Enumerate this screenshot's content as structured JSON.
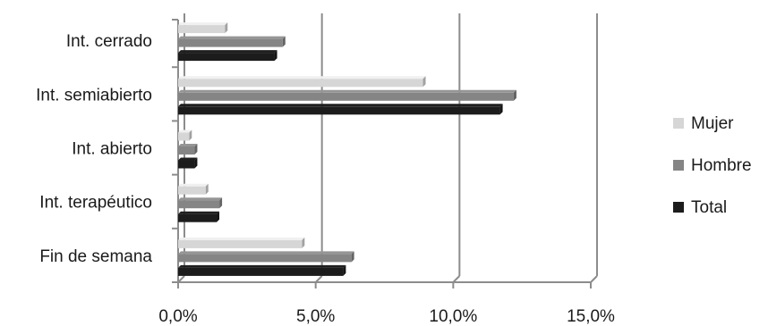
{
  "chart_data": {
    "type": "bar",
    "orientation": "horizontal",
    "style": "3d-clustered",
    "categories": [
      "Int. cerrado",
      "Int. semiabierto",
      "Int. abierto",
      "Int. terapéutico",
      "Fin de semana"
    ],
    "series": [
      {
        "name": "Mujer",
        "color": "#d6d6d6",
        "values": [
          1.7,
          8.9,
          0.4,
          1.0,
          4.5
        ]
      },
      {
        "name": "Hombre",
        "color": "#858585",
        "values": [
          3.8,
          12.2,
          0.6,
          1.5,
          6.3
        ]
      },
      {
        "name": "Total",
        "color": "#1c1c1c",
        "values": [
          3.5,
          11.7,
          0.6,
          1.4,
          6.0
        ]
      }
    ],
    "x_ticks": [
      "0,0%",
      "5,0%",
      "10,0%",
      "15,0%"
    ],
    "x_tick_values": [
      0,
      5,
      10,
      15
    ],
    "xlim": [
      0,
      15
    ],
    "grid": true,
    "legend_position": "right",
    "legend_order": [
      "Mujer",
      "Hombre",
      "Total"
    ],
    "title": "",
    "xlabel": "",
    "ylabel": ""
  }
}
